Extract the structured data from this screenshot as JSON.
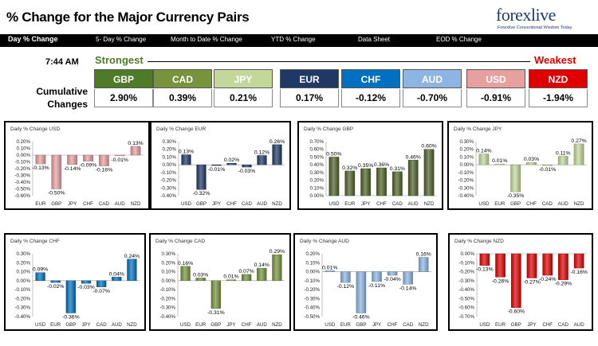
{
  "header": {
    "title": "% Change for the Major Currency Pairs",
    "logo": {
      "text": "forexlive",
      "tagline": "Forexlive Conventional Wisdom Today"
    }
  },
  "tabs": [
    {
      "label": "Day % Change",
      "active": true
    },
    {
      "label": "5- Day % Change",
      "active": false
    },
    {
      "label": "Month to Date % Change",
      "active": false
    },
    {
      "label": "YTD % Change",
      "active": false
    },
    {
      "label": "Data Sheet",
      "active": false
    },
    {
      "label": "EOD % Change",
      "active": false
    }
  ],
  "summary": {
    "time": "7:44 AM",
    "strongest_label": "Strongest",
    "weakest_label": "Weakest",
    "cumulative_label_1": "Cumulative",
    "cumulative_label_2": "Changes",
    "currencies": [
      {
        "code": "GBP",
        "value": "2.90%",
        "color": "#4f7a28"
      },
      {
        "code": "CAD",
        "value": "0.39%",
        "color": "#77933c"
      },
      {
        "code": "JPY",
        "value": "0.21%",
        "color": "#c4d79b"
      },
      {
        "code": "EUR",
        "value": "0.17%",
        "color": "#1f3864"
      },
      {
        "code": "CHF",
        "value": "-0.12%",
        "color": "#0070c0"
      },
      {
        "code": "AUD",
        "value": "-0.70%",
        "color": "#8db4e2"
      },
      {
        "code": "USD",
        "value": "-0.91%",
        "color": "#e6a0a0"
      },
      {
        "code": "NZD",
        "value": "-1.94%",
        "color": "#e00000"
      }
    ]
  },
  "chart_data": [
    {
      "type": "bar",
      "title": "Daily % Change USD",
      "categories": [
        "EUR",
        "GBP",
        "JPY",
        "CHF",
        "CAD",
        "AUD",
        "NZD"
      ],
      "values": [
        -0.13,
        -0.5,
        -0.14,
        -0.09,
        -0.16,
        -0.01,
        0.13
      ],
      "labels": [
        "-0.13%",
        "-0.50%",
        "-0.14%",
        "-0.09%",
        "-0.16%",
        "-0.01%",
        "0.13%"
      ],
      "yticks": [
        "0.20%",
        "0.10%",
        "0.00%",
        "-0.10%",
        "-0.20%",
        "-0.30%",
        "-0.40%",
        "-0.50%",
        "-0.60%"
      ],
      "ylim": [
        -0.6,
        0.2
      ],
      "color": "#e6a0a0"
    },
    {
      "type": "bar",
      "title": "Daily % Change EUR",
      "categories": [
        "USD",
        "GBP",
        "JPY",
        "CHF",
        "CAD",
        "AUD",
        "NZD"
      ],
      "values": [
        0.13,
        -0.32,
        -0.01,
        0.02,
        -0.03,
        0.12,
        0.26
      ],
      "labels": [
        "0.13%",
        "-0.32%",
        "-0.01%",
        "0.02%",
        "-0.03%",
        "0.12%",
        "0.26%"
      ],
      "yticks": [
        "0.30%",
        "0.20%",
        "0.10%",
        "0.00%",
        "-0.10%",
        "-0.20%",
        "-0.30%",
        "-0.40%"
      ],
      "ylim": [
        -0.4,
        0.3
      ],
      "color": "#1f3864"
    },
    {
      "type": "bar",
      "title": "Daily % Change GBP",
      "categories": [
        "USD",
        "EUR",
        "JPY",
        "CHF",
        "CAD",
        "AUD",
        "NZD"
      ],
      "values": [
        0.5,
        0.32,
        0.35,
        0.36,
        0.31,
        0.46,
        0.6
      ],
      "labels": [
        "0.50%",
        "0.32%",
        "0.35%",
        "0.36%",
        "0.31%",
        "0.46%",
        "0.60%"
      ],
      "yticks": [
        "0.70%",
        "0.60%",
        "0.50%",
        "0.40%",
        "0.30%",
        "0.20%",
        "0.10%",
        "0.00%"
      ],
      "ylim": [
        0,
        0.7
      ],
      "color": "#4f6228"
    },
    {
      "type": "bar",
      "title": "Daily % Change JPY",
      "categories": [
        "USD",
        "EUR",
        "GBP",
        "CHF",
        "CAD",
        "AUD",
        "NZD"
      ],
      "values": [
        0.14,
        0.01,
        -0.35,
        0.03,
        -0.01,
        0.11,
        0.27
      ],
      "labels": [
        "0.14%",
        "0.01%",
        "-0.35%",
        "0.03%",
        "-0.01%",
        "0.11%",
        "0.27%"
      ],
      "yticks": [
        "0.30%",
        "0.20%",
        "0.10%",
        "0.00%",
        "-0.10%",
        "-0.20%",
        "-0.30%",
        "-0.40%"
      ],
      "ylim": [
        -0.4,
        0.3
      ],
      "color": "#c4d79b"
    },
    {
      "type": "bar",
      "title": "Daily % Change CHF",
      "categories": [
        "USD",
        "EUR",
        "GBP",
        "JPY",
        "CAD",
        "AUD",
        "NZD"
      ],
      "values": [
        0.09,
        -0.02,
        -0.36,
        -0.03,
        -0.07,
        0.04,
        0.24
      ],
      "labels": [
        "0.09%",
        "-0.02%",
        "-0.36%",
        "-0.03%",
        "-0.07%",
        "0.04%",
        "0.24%"
      ],
      "yticks": [
        "0.30%",
        "0.20%",
        "0.10%",
        "0.00%",
        "-0.10%",
        "-0.20%",
        "-0.30%",
        "-0.40%"
      ],
      "ylim": [
        -0.4,
        0.3
      ],
      "color": "#0070c0"
    },
    {
      "type": "bar",
      "title": "Daily % Change CAD",
      "categories": [
        "USD",
        "EUR",
        "GBP",
        "JPY",
        "CHF",
        "AUD",
        "NZD"
      ],
      "values": [
        0.16,
        0.03,
        -0.31,
        0.01,
        0.07,
        0.14,
        0.29
      ],
      "labels": [
        "0.16%",
        "0.03%",
        "-0.31%",
        "0.01%",
        "0.07%",
        "0.14%",
        "0.29%"
      ],
      "yticks": [
        "0.30%",
        "0.20%",
        "0.10%",
        "0.00%",
        "-0.10%",
        "-0.20%",
        "-0.30%",
        "-0.40%"
      ],
      "ylim": [
        -0.4,
        0.3
      ],
      "color": "#77933c"
    },
    {
      "type": "bar",
      "title": "Daily % Change AUD",
      "categories": [
        "USD",
        "EUR",
        "GBP",
        "JPY",
        "CHF",
        "CAD",
        "NZD"
      ],
      "values": [
        0.01,
        -0.12,
        -0.46,
        -0.11,
        -0.04,
        -0.14,
        0.16
      ],
      "labels": [
        "0.01%",
        "-0.12%",
        "-0.46%",
        "-0.11%",
        "-0.04%",
        "-0.14%",
        "0.16%"
      ],
      "yticks": [
        "0.20%",
        "0.10%",
        "0.00%",
        "-0.10%",
        "-0.20%",
        "-0.30%",
        "-0.40%",
        "-0.50%"
      ],
      "ylim": [
        -0.5,
        0.2
      ],
      "color": "#8db4e2"
    },
    {
      "type": "bar",
      "title": "Daily % Change NZD",
      "categories": [
        "USD",
        "EUR",
        "GBP",
        "JPY",
        "CHF",
        "CAD",
        "AUD"
      ],
      "values": [
        -0.13,
        -0.26,
        -0.6,
        -0.27,
        -0.24,
        -0.29,
        -0.16
      ],
      "labels": [
        "-0.13%",
        "-0.26%",
        "-0.60%",
        "-0.27%",
        "-0.24%",
        "-0.29%",
        "-0.16%"
      ],
      "yticks": [
        "0.00%",
        "-0.10%",
        "-0.20%",
        "-0.30%",
        "-0.40%",
        "-0.50%",
        "-0.60%",
        "-0.70%"
      ],
      "ylim": [
        -0.7,
        0
      ],
      "color": "#e00000"
    }
  ]
}
